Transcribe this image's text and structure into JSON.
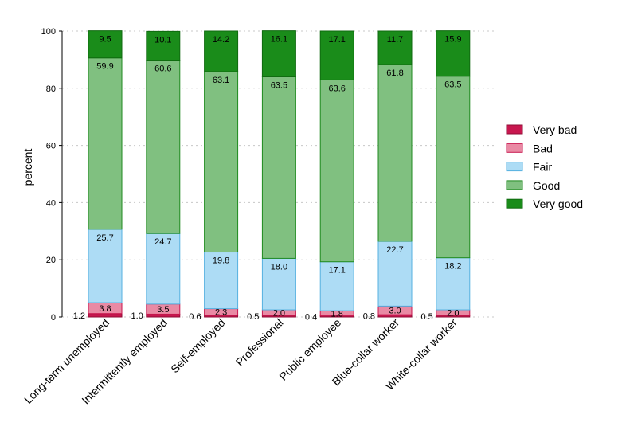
{
  "chart_data": {
    "type": "bar",
    "stacked": true,
    "ylabel": "percent",
    "ylim": [
      0,
      100
    ],
    "yticks": [
      0,
      20,
      40,
      60,
      80,
      100
    ],
    "grid": true,
    "legend_position": "right",
    "categories": [
      "Long-term unemployed",
      "Intermittently employed",
      "Self-employed",
      "Professional",
      "Public employee",
      "Blue-collar worker",
      "White-collar worker"
    ],
    "series": [
      {
        "name": "Very bad",
        "key": "very_bad",
        "values": [
          1.2,
          1.0,
          0.6,
          0.5,
          0.4,
          0.8,
          0.5
        ],
        "fill": "#c8174f",
        "stroke": "#8e0d35"
      },
      {
        "name": "Bad",
        "key": "bad",
        "values": [
          3.8,
          3.5,
          2.3,
          2.0,
          1.8,
          3.0,
          2.0
        ],
        "fill": "#e98aa4",
        "stroke": "#c8174f"
      },
      {
        "name": "Fair",
        "key": "fair",
        "values": [
          25.7,
          24.7,
          19.8,
          18.0,
          17.1,
          22.7,
          18.2
        ],
        "fill": "#addcf5",
        "stroke": "#56b1e0"
      },
      {
        "name": "Good",
        "key": "good",
        "values": [
          59.9,
          60.6,
          63.1,
          63.5,
          63.6,
          61.8,
          63.5
        ],
        "fill": "#80c080",
        "stroke": "#1f8a1f"
      },
      {
        "name": "Very good",
        "key": "very_good",
        "values": [
          9.5,
          10.1,
          14.2,
          16.1,
          17.1,
          11.7,
          15.9
        ],
        "fill": "#1a8c1a",
        "stroke": "#0f6a0f"
      }
    ]
  }
}
